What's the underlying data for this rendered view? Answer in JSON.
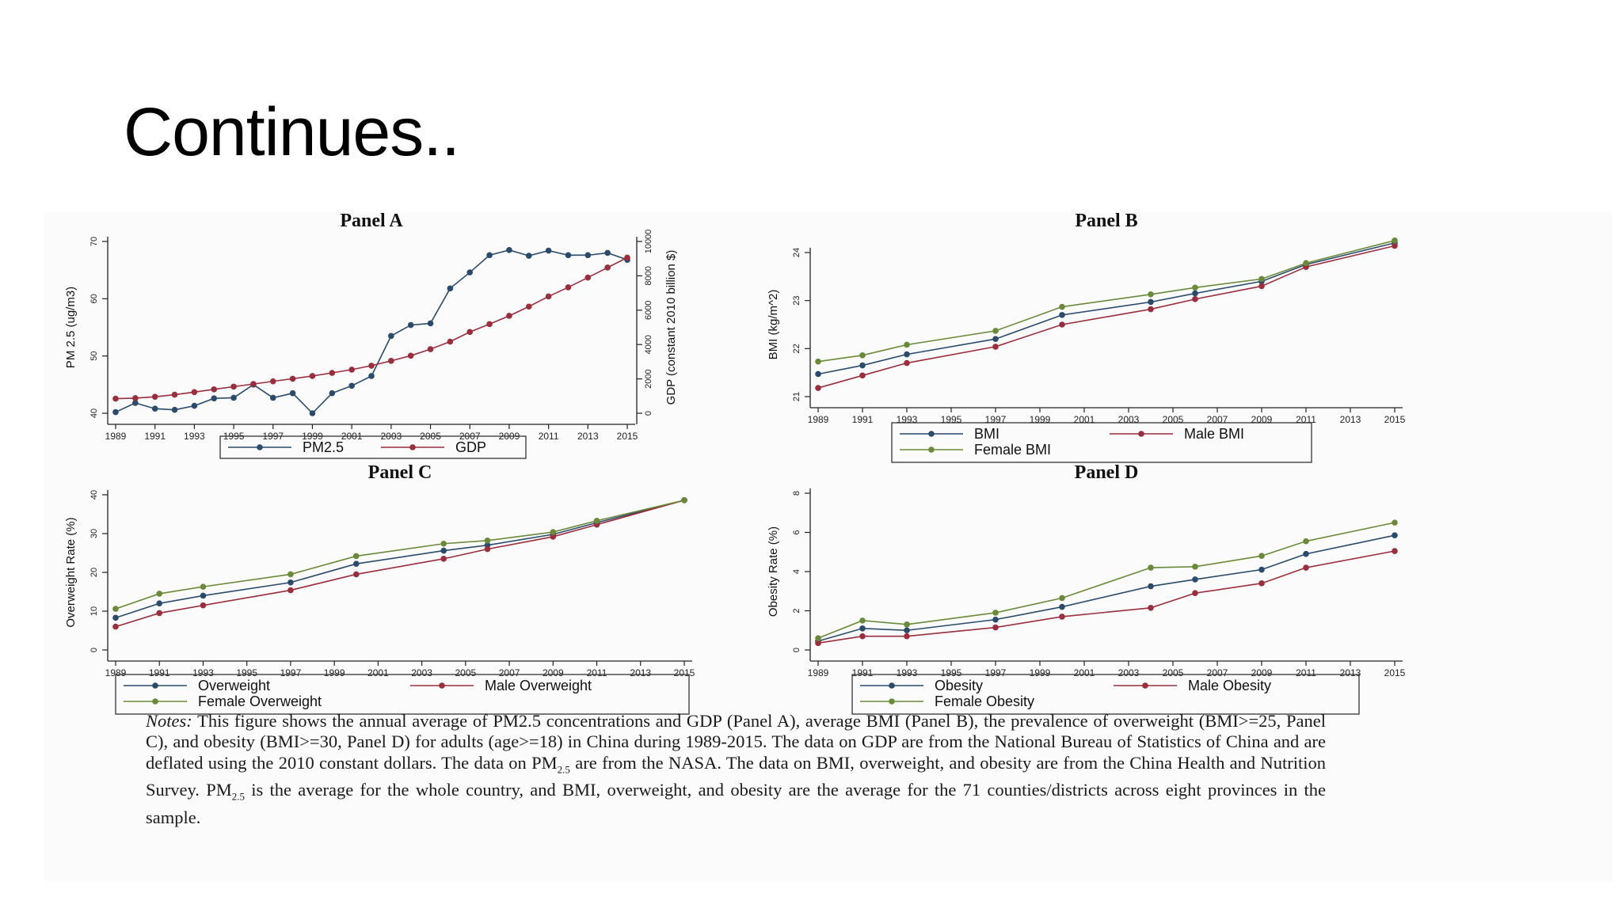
{
  "slide": {
    "title": "Continues.."
  },
  "colors": {
    "blue": "#2a4b6c",
    "red": "#9a2e3c",
    "green": "#6a8a3a",
    "axis": "#222222"
  },
  "chart_data": [
    {
      "type": "line",
      "title": "Panel A",
      "ylabel": "PM 2.5 (ug/m3)",
      "ylabel2": "GDP (constant 2010 billion $)",
      "x_ticks": [
        "1989",
        "1991",
        "1993",
        "1995",
        "1997",
        "1999",
        "2001",
        "2003",
        "2005",
        "2007",
        "2009",
        "2011",
        "2013",
        "2015"
      ],
      "ylim": [
        40,
        70
      ],
      "y_ticks": [
        "40",
        "50",
        "60",
        "70"
      ],
      "ylim2": [
        0,
        10000
      ],
      "y2_ticks": [
        "0",
        "2000",
        "4000",
        "6000",
        "8000",
        "10000"
      ],
      "legend": "bottom",
      "series": [
        {
          "name": "PM2.5",
          "axis": "left",
          "color": "#2a4b6c",
          "x": [
            1989,
            1990,
            1991,
            1992,
            1993,
            1994,
            1995,
            1996,
            1997,
            1998,
            1999,
            2000,
            2001,
            2002,
            2003,
            2004,
            2005,
            2006,
            2007,
            2008,
            2009,
            2010,
            2011,
            2012,
            2013,
            2014,
            2015
          ],
          "values": [
            40.2,
            41.8,
            40.8,
            40.6,
            41.3,
            42.6,
            42.7,
            45.0,
            42.7,
            43.5,
            40.0,
            43.5,
            44.8,
            46.5,
            53.5,
            55.4,
            55.7,
            61.8,
            64.6,
            67.6,
            68.5,
            67.5,
            68.4,
            67.6,
            67.6,
            68.0,
            66.8
          ]
        },
        {
          "name": "GDP",
          "axis": "right",
          "color": "#9a2e3c",
          "x": [
            1989,
            1990,
            1991,
            1992,
            1993,
            1994,
            1995,
            1996,
            1997,
            1998,
            1999,
            2000,
            2001,
            2002,
            2003,
            2004,
            2005,
            2006,
            2007,
            2008,
            2009,
            2010,
            2011,
            2012,
            2013,
            2014,
            2015
          ],
          "values": [
            850,
            880,
            960,
            1080,
            1230,
            1390,
            1550,
            1700,
            1860,
            2010,
            2170,
            2350,
            2540,
            2770,
            3050,
            3350,
            3730,
            4170,
            4730,
            5190,
            5670,
            6210,
            6800,
            7330,
            7900,
            8480,
            9060
          ]
        }
      ]
    },
    {
      "type": "line",
      "title": "Panel B",
      "ylabel": "BMI (kg/m^2)",
      "x_ticks": [
        "1989",
        "1991",
        "1993",
        "1995",
        "1997",
        "1999",
        "2001",
        "2003",
        "2005",
        "2007",
        "2009",
        "2011",
        "2013",
        "2015"
      ],
      "ylim": [
        21,
        24
      ],
      "y_ticks": [
        "21",
        "22",
        "23",
        "24"
      ],
      "legend": "bottom",
      "series": [
        {
          "name": "BMI",
          "color": "#2a4b6c",
          "x": [
            1989,
            1991,
            1993,
            1997,
            2000,
            2004,
            2006,
            2009,
            2011,
            2015
          ],
          "values": [
            21.47,
            21.65,
            21.88,
            22.2,
            22.7,
            22.97,
            23.15,
            23.4,
            23.75,
            24.2
          ]
        },
        {
          "name": "Male BMI",
          "color": "#9a2e3c",
          "x": [
            1989,
            1991,
            1993,
            1997,
            2000,
            2004,
            2006,
            2009,
            2011,
            2015
          ],
          "values": [
            21.18,
            21.44,
            21.7,
            22.04,
            22.5,
            22.82,
            23.03,
            23.3,
            23.7,
            24.14
          ]
        },
        {
          "name": "Female BMI",
          "color": "#6a8a3a",
          "x": [
            1989,
            1991,
            1993,
            1997,
            2000,
            2004,
            2006,
            2009,
            2011,
            2015
          ],
          "values": [
            21.73,
            21.86,
            22.08,
            22.37,
            22.87,
            23.13,
            23.27,
            23.45,
            23.78,
            24.25
          ]
        }
      ]
    },
    {
      "type": "line",
      "title": "Panel C",
      "ylabel": "Overweight Rate (%)",
      "x_ticks": [
        "1989",
        "1991",
        "1993",
        "1995",
        "1997",
        "1999",
        "2001",
        "2003",
        "2005",
        "2007",
        "2009",
        "2011",
        "2013",
        "2015"
      ],
      "ylim": [
        0,
        40
      ],
      "y_ticks": [
        "0",
        "10",
        "20",
        "30",
        "40"
      ],
      "legend": "bottom",
      "series": [
        {
          "name": "Overweight",
          "color": "#2a4b6c",
          "x": [
            1989,
            1991,
            1993,
            1997,
            2000,
            2004,
            2006,
            2009,
            2011,
            2015
          ],
          "values": [
            8.3,
            12.0,
            14.0,
            17.4,
            22.2,
            25.6,
            27.0,
            29.8,
            32.8,
            38.6
          ]
        },
        {
          "name": "Male Overweight",
          "color": "#9a2e3c",
          "x": [
            1989,
            1991,
            1993,
            1997,
            2000,
            2004,
            2006,
            2009,
            2011,
            2015
          ],
          "values": [
            6.0,
            9.5,
            11.5,
            15.4,
            19.5,
            23.5,
            26.0,
            29.2,
            32.3,
            38.6
          ]
        },
        {
          "name": "Female Overweight",
          "color": "#6a8a3a",
          "x": [
            1989,
            1991,
            1993,
            1997,
            2000,
            2004,
            2006,
            2009,
            2011,
            2015
          ],
          "values": [
            10.6,
            14.5,
            16.3,
            19.5,
            24.2,
            27.4,
            28.2,
            30.4,
            33.3,
            38.6
          ]
        }
      ]
    },
    {
      "type": "line",
      "title": "Panel D",
      "ylabel": "Obesity Rate (%)",
      "x_ticks": [
        "1989",
        "1991",
        "1993",
        "1995",
        "1997",
        "1999",
        "2001",
        "2003",
        "2005",
        "2007",
        "2009",
        "2011",
        "2013",
        "2015"
      ],
      "ylim": [
        0,
        8
      ],
      "y_ticks": [
        "0",
        "2",
        "4",
        "6",
        "8"
      ],
      "legend": "bottom",
      "series": [
        {
          "name": "Obesity",
          "color": "#2a4b6c",
          "x": [
            1989,
            1991,
            1993,
            1997,
            2000,
            2004,
            2006,
            2009,
            2011,
            2015
          ],
          "values": [
            0.45,
            1.1,
            1.0,
            1.55,
            2.2,
            3.25,
            3.6,
            4.1,
            4.9,
            5.85
          ]
        },
        {
          "name": "Male Obesity",
          "color": "#9a2e3c",
          "x": [
            1989,
            1991,
            1993,
            1997,
            2000,
            2004,
            2006,
            2009,
            2011,
            2015
          ],
          "values": [
            0.35,
            0.7,
            0.7,
            1.15,
            1.7,
            2.15,
            2.9,
            3.4,
            4.2,
            5.05
          ]
        },
        {
          "name": "Female Obesity",
          "color": "#6a8a3a",
          "x": [
            1989,
            1991,
            1993,
            1997,
            2000,
            2004,
            2006,
            2009,
            2011,
            2015
          ],
          "values": [
            0.6,
            1.5,
            1.3,
            1.9,
            2.65,
            4.2,
            4.25,
            4.8,
            5.55,
            6.5
          ]
        }
      ]
    }
  ],
  "notes": {
    "lead": "Notes:",
    "part1": " This figure shows the annual average of PM2.5 concentrations and GDP (Panel A), average BMI (Panel B), the prevalence of overweight (BMI>=25, Panel C), and obesity (BMI>=30, Panel D) for adults (age>=18) in China during 1989-2015. The data on GDP are from the National Bureau of Statistics of China and are deflated using the 2010 constant dollars. The data on PM",
    "sub1": "2.5",
    "part2": " are from the NASA. The data on BMI, overweight, and obesity are from the China Health and Nutrition Survey. PM",
    "sub2": "2.5",
    "part3": " is the average for the whole country, and BMI, overweight, and obesity are the average for the 71 counties/districts across eight provinces in the sample."
  }
}
